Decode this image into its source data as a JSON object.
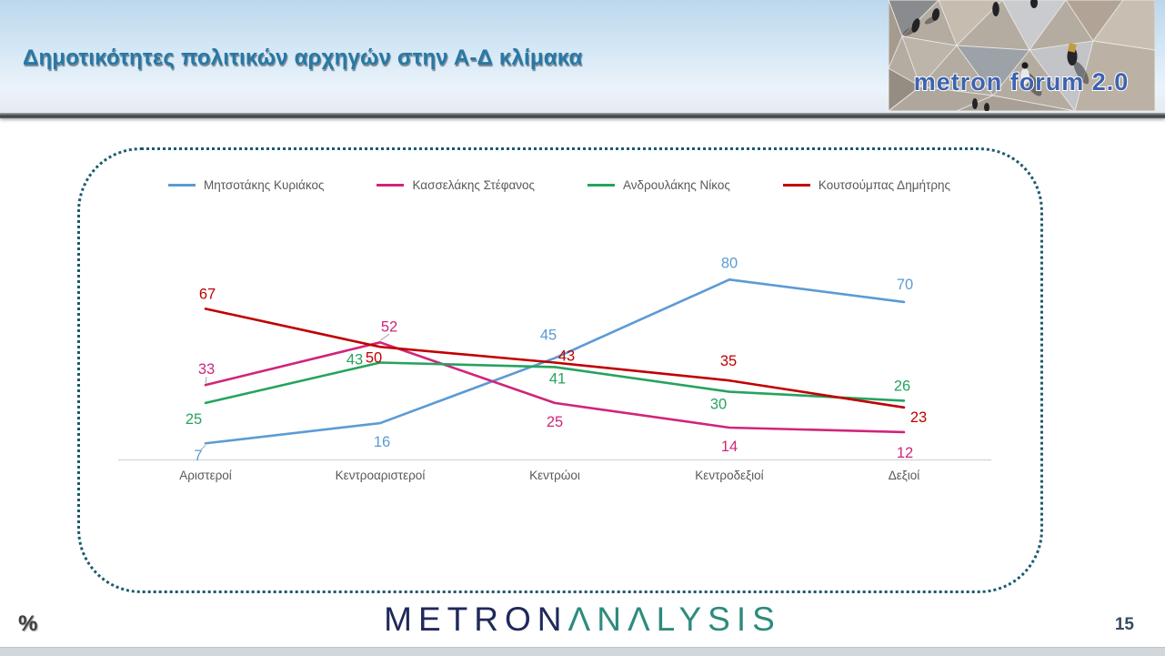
{
  "header": {
    "title": "Δημοτικότητες πολιτικών αρχηγών στην Α-Δ κλίμακα",
    "logo_text": "metron forum 2.0"
  },
  "footer": {
    "unit_label": "%",
    "brand_left": "METRON",
    "brand_right": "ΛNΛLYSIS",
    "page_number": "15"
  },
  "chart_data": {
    "type": "line",
    "title": "Δημοτικότητες πολιτικών αρχηγών στην Α-Δ κλίμακα",
    "categories": [
      "Αριστεροί",
      "Κεντροαριστεροί",
      "Κεντρώοι",
      "Κεντροδεξιοί",
      "Δεξιοί"
    ],
    "series": [
      {
        "name": "Μητσοτάκης Κυριάκος",
        "color": "#5B9BD5",
        "values": [
          7,
          16,
          45,
          80,
          70
        ],
        "label_offsets": [
          [
            -8,
            19,
            1
          ],
          [
            2,
            26,
            0
          ],
          [
            -7,
            -20,
            0
          ],
          [
            0,
            -13,
            0
          ],
          [
            1,
            -14,
            0
          ]
        ]
      },
      {
        "name": "Κασσελάκης Στέφανος",
        "color": "#D0257B",
        "values": [
          33,
          52,
          25,
          14,
          12
        ],
        "label_offsets": [
          [
            1,
            -12,
            1
          ],
          [
            10,
            -12,
            1
          ],
          [
            0,
            26,
            0
          ],
          [
            0,
            26,
            0
          ],
          [
            1,
            28,
            0
          ]
        ]
      },
      {
        "name": "Ανδρουλάκης Νίκος",
        "color": "#26A35F",
        "values": [
          25,
          43,
          41,
          30,
          26
        ],
        "label_offsets": [
          [
            -13,
            23,
            0
          ],
          [
            -28,
            2,
            0
          ],
          [
            3,
            18,
            0
          ],
          [
            -12,
            19,
            0
          ],
          [
            -2,
            -11,
            0
          ]
        ]
      },
      {
        "name": "Κουτσούμπας Δημήτρης",
        "color": "#C00000",
        "values": [
          67,
          50,
          43,
          35,
          23
        ],
        "label_offsets": [
          [
            2,
            -11,
            0
          ],
          [
            -7,
            17,
            0
          ],
          [
            13,
            -2,
            0
          ],
          [
            -1,
            -16,
            0
          ],
          [
            16,
            16,
            0
          ]
        ]
      }
    ],
    "ylim": [
      0,
      100
    ],
    "unit": "%",
    "grid": false,
    "legend_position": "top",
    "axis_color": "#D9D9D9",
    "label_color": "#595959"
  }
}
